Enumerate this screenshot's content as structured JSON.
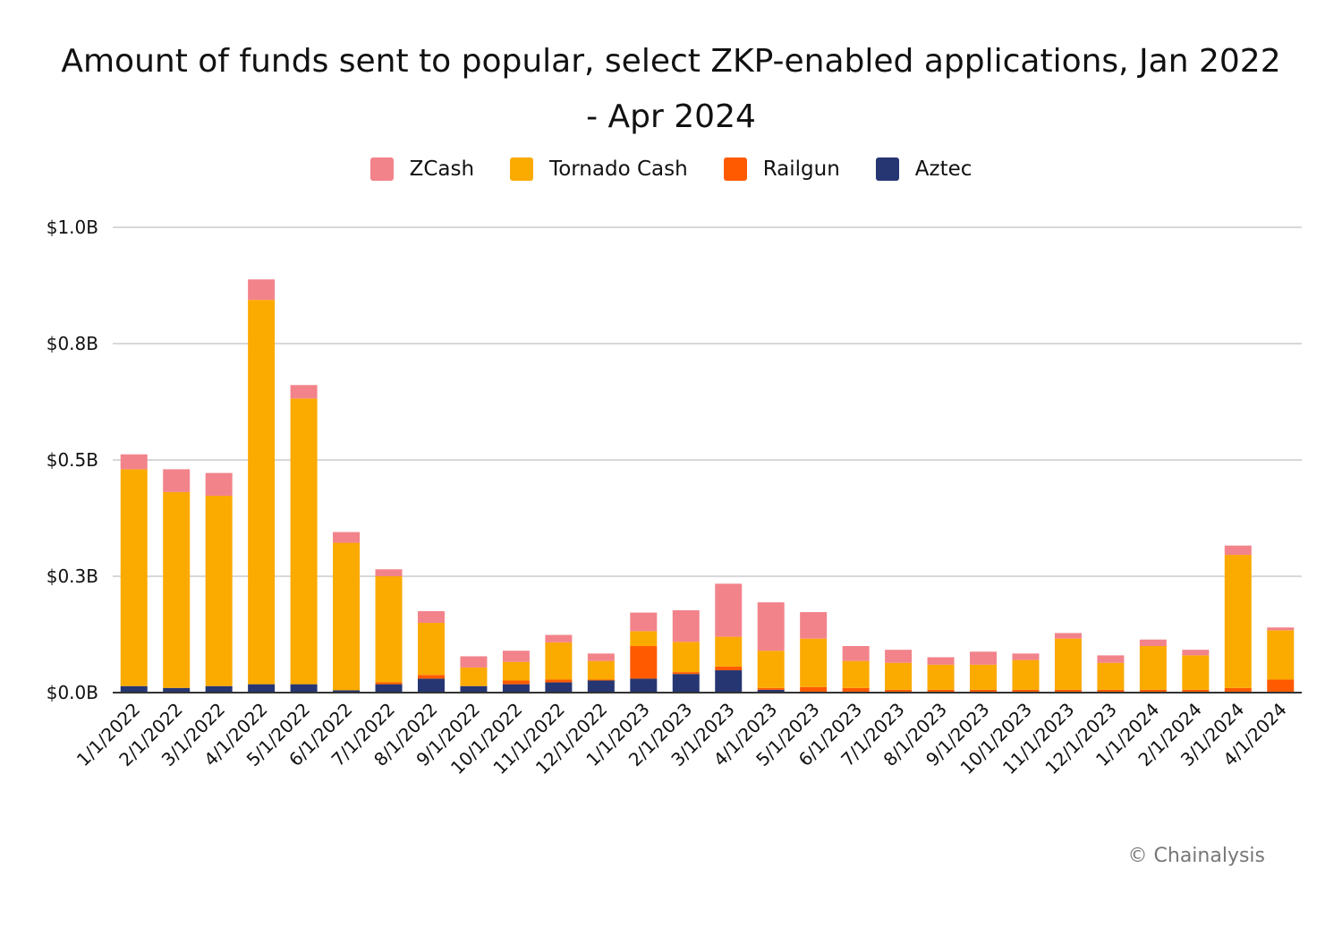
{
  "title_line1": "Amount of funds sent to popular, select ZKP-enabled applications, Jan 2022",
  "title_line2": "- Apr 2024",
  "credit": "© Chainalysis",
  "colors": {
    "ZCash": "#f2838b",
    "Tornado Cash": "#fbaa00",
    "Railgun": "#ff5a00",
    "Aztec": "#263673",
    "grid": "#cccccc",
    "axis": "#333333"
  },
  "chart_data": {
    "type": "bar",
    "stacked": true,
    "title": "Amount of funds sent to popular, select ZKP-enabled applications, Jan 2022 - Apr 2024",
    "xlabel": "",
    "ylabel": "",
    "ylim": [
      0,
      1.0
    ],
    "y_ticks": [
      {
        "value": 0,
        "label": "$0.0B"
      },
      {
        "value": 0.25,
        "label": "$0.3B"
      },
      {
        "value": 0.5,
        "label": "$0.5B"
      },
      {
        "value": 0.75,
        "label": "$0.8B"
      },
      {
        "value": 1.0,
        "label": "$1.0B"
      }
    ],
    "grid": true,
    "legend_position": "top-center",
    "categories": [
      "1/1/2022",
      "2/1/2022",
      "3/1/2022",
      "4/1/2022",
      "5/1/2022",
      "6/1/2022",
      "7/1/2022",
      "8/1/2022",
      "9/1/2022",
      "10/1/2022",
      "11/1/2022",
      "12/1/2022",
      "1/1/2023",
      "2/1/2023",
      "3/1/2023",
      "4/1/2023",
      "5/1/2023",
      "6/1/2023",
      "7/1/2023",
      "8/1/2023",
      "9/1/2023",
      "10/1/2023",
      "11/1/2023",
      "12/1/2023",
      "1/1/2024",
      "2/1/2024",
      "3/1/2024",
      "4/1/2024"
    ],
    "series": [
      {
        "name": "Aztec",
        "values": [
          0.014,
          0.01,
          0.014,
          0.018,
          0.018,
          0.005,
          0.018,
          0.03,
          0.014,
          0.018,
          0.022,
          0.026,
          0.03,
          0.04,
          0.048,
          0.006,
          0.002,
          0.002,
          0.002,
          0.002,
          0.002,
          0.002,
          0.002,
          0.002,
          0.002,
          0.002,
          0.002,
          0.002
        ]
      },
      {
        "name": "Railgun",
        "values": [
          0,
          0,
          0,
          0,
          0,
          0,
          0.004,
          0.008,
          0,
          0.008,
          0.006,
          0.002,
          0.07,
          0.004,
          0.008,
          0.004,
          0.01,
          0.008,
          0.004,
          0.004,
          0.004,
          0.004,
          0.004,
          0.004,
          0.004,
          0.004,
          0.008,
          0.026
        ]
      },
      {
        "name": "Tornado Cash",
        "values": [
          0.466,
          0.421,
          0.409,
          0.826,
          0.614,
          0.317,
          0.228,
          0.112,
          0.04,
          0.04,
          0.08,
          0.04,
          0.032,
          0.065,
          0.064,
          0.08,
          0.104,
          0.058,
          0.058,
          0.054,
          0.054,
          0.064,
          0.11,
          0.058,
          0.094,
          0.074,
          0.286,
          0.106
        ]
      },
      {
        "name": "ZCash",
        "values": [
          0.032,
          0.049,
          0.049,
          0.044,
          0.029,
          0.023,
          0.015,
          0.025,
          0.024,
          0.024,
          0.016,
          0.016,
          0.04,
          0.068,
          0.114,
          0.104,
          0.057,
          0.032,
          0.028,
          0.016,
          0.028,
          0.014,
          0.012,
          0.016,
          0.014,
          0.012,
          0.02,
          0.006
        ]
      }
    ]
  }
}
